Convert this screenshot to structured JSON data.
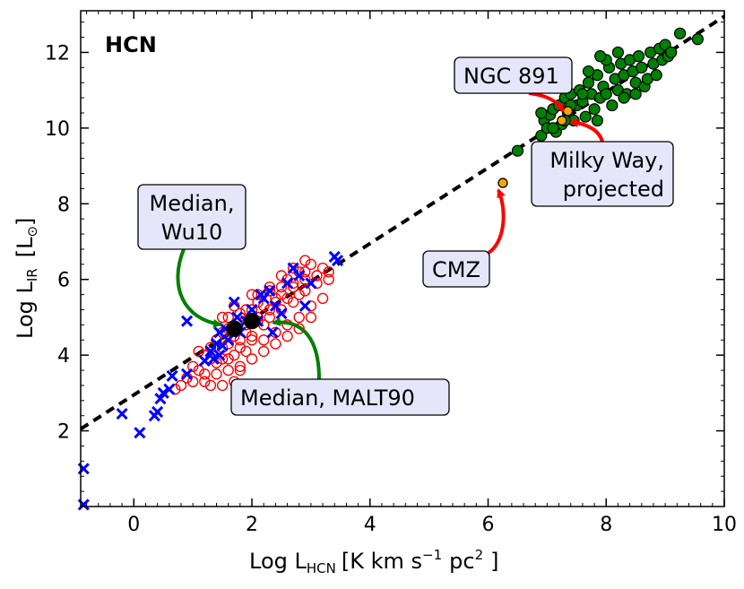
{
  "chart_data": {
    "type": "scatter",
    "panel_label": "HCN",
    "xlabel": {
      "main": "Log L",
      "sub": "HCN",
      "units": "[K km s",
      "exp": "−1",
      "pc": "pc",
      "pc_exp": "2",
      "close": "]"
    },
    "ylabel": {
      "main": "Log L",
      "sub": "IR",
      "units": "[L",
      "sun": "⊙",
      "close": "]"
    },
    "xlim": [
      -0.9,
      10.0
    ],
    "ylim": [
      0.0,
      13.1
    ],
    "xticks": [
      "0",
      "2",
      "4",
      "6",
      "8",
      "10"
    ],
    "xtick_values": [
      0,
      2,
      4,
      6,
      8,
      10
    ],
    "yticks": [
      "2",
      "4",
      "6",
      "8",
      "10",
      "12"
    ],
    "ytick_values": [
      2,
      4,
      6,
      8,
      10,
      12
    ],
    "grid": false,
    "fit_line": {
      "style": "dashed",
      "color": "#000000",
      "x": [
        -0.9,
        10.0
      ],
      "y": [
        2.05,
        12.95
      ]
    },
    "series": [
      {
        "marker": "open-circle",
        "color": "#ff0000",
        "points": [
          [
            1.3,
            3.2
          ],
          [
            1.5,
            3.2
          ],
          [
            1.7,
            3.3
          ],
          [
            1.4,
            3.5
          ],
          [
            1.6,
            3.6
          ],
          [
            1.8,
            3.7
          ],
          [
            1.5,
            3.9
          ],
          [
            1.7,
            4.0
          ],
          [
            1.9,
            4.1
          ],
          [
            1.3,
            4.2
          ],
          [
            1.6,
            4.3
          ],
          [
            1.8,
            4.4
          ],
          [
            2.0,
            4.5
          ],
          [
            1.5,
            4.6
          ],
          [
            1.7,
            4.7
          ],
          [
            1.9,
            4.8
          ],
          [
            2.1,
            4.9
          ],
          [
            2.3,
            5.0
          ],
          [
            1.6,
            5.0
          ],
          [
            1.8,
            5.1
          ],
          [
            2.0,
            5.2
          ],
          [
            2.2,
            5.3
          ],
          [
            2.4,
            5.4
          ],
          [
            2.6,
            5.5
          ],
          [
            2.8,
            5.6
          ],
          [
            2.1,
            5.6
          ],
          [
            2.3,
            5.7
          ],
          [
            2.5,
            5.8
          ],
          [
            2.7,
            5.9
          ],
          [
            2.9,
            6.0
          ],
          [
            3.1,
            6.1
          ],
          [
            3.2,
            6.3
          ],
          [
            3.0,
            6.4
          ],
          [
            2.8,
            6.2
          ],
          [
            2.6,
            6.0
          ],
          [
            2.4,
            5.5
          ],
          [
            2.2,
            4.8
          ],
          [
            2.0,
            4.4
          ],
          [
            1.8,
            4.2
          ],
          [
            1.6,
            3.9
          ],
          [
            1.4,
            3.8
          ],
          [
            1.2,
            4.0
          ],
          [
            1.1,
            3.6
          ],
          [
            0.9,
            3.4
          ],
          [
            0.8,
            3.2
          ],
          [
            0.7,
            3.1
          ],
          [
            1.0,
            3.3
          ],
          [
            1.2,
            3.5
          ],
          [
            2.5,
            5.2
          ],
          [
            2.7,
            5.4
          ],
          [
            2.9,
            5.7
          ],
          [
            3.1,
            5.9
          ],
          [
            3.3,
            6.0
          ],
          [
            2.6,
            4.8
          ],
          [
            2.4,
            4.6
          ],
          [
            2.2,
            4.4
          ],
          [
            2.8,
            5.0
          ],
          [
            3.0,
            5.3
          ],
          [
            1.9,
            4.6
          ],
          [
            2.1,
            5.0
          ],
          [
            2.3,
            5.2
          ],
          [
            2.5,
            5.6
          ],
          [
            2.7,
            5.8
          ],
          [
            2.9,
            6.2
          ],
          [
            1.7,
            4.5
          ],
          [
            1.5,
            4.2
          ],
          [
            1.3,
            3.9
          ],
          [
            2.0,
            3.9
          ],
          [
            1.8,
            3.6
          ],
          [
            2.2,
            4.1
          ],
          [
            2.4,
            4.3
          ],
          [
            2.6,
            4.5
          ],
          [
            2.8,
            4.7
          ],
          [
            3.0,
            5.0
          ],
          [
            3.2,
            5.5
          ],
          [
            1.1,
            4.1
          ],
          [
            1.4,
            4.4
          ],
          [
            1.6,
            4.7
          ],
          [
            1.9,
            5.2
          ],
          [
            2.1,
            5.4
          ],
          [
            2.3,
            5.8
          ],
          [
            2.0,
            5.6
          ],
          [
            1.7,
            5.3
          ],
          [
            1.5,
            5.0
          ],
          [
            2.7,
            6.3
          ],
          [
            2.9,
            6.5
          ],
          [
            3.3,
            6.2
          ],
          [
            2.5,
            6.1
          ],
          [
            1.2,
            3.3
          ],
          [
            1.0,
            3.7
          ]
        ]
      },
      {
        "marker": "x",
        "color": "#0000ff",
        "points": [
          [
            -0.85,
            1.0
          ],
          [
            -0.85,
            0.05
          ],
          [
            -0.2,
            2.45
          ],
          [
            0.1,
            1.95
          ],
          [
            0.35,
            2.4
          ],
          [
            0.4,
            2.5
          ],
          [
            0.45,
            2.85
          ],
          [
            0.5,
            3.0
          ],
          [
            0.6,
            3.1
          ],
          [
            0.65,
            3.45
          ],
          [
            0.9,
            3.5
          ],
          [
            0.9,
            4.9
          ],
          [
            1.2,
            3.85
          ],
          [
            1.3,
            4.1
          ],
          [
            1.35,
            3.9
          ],
          [
            1.4,
            4.3
          ],
          [
            1.45,
            4.6
          ],
          [
            1.5,
            4.25
          ],
          [
            1.55,
            4.7
          ],
          [
            1.6,
            4.4
          ],
          [
            1.7,
            5.4
          ],
          [
            1.8,
            4.6
          ],
          [
            1.9,
            4.9
          ],
          [
            2.0,
            5.2
          ],
          [
            2.1,
            4.9
          ],
          [
            2.2,
            5.5
          ],
          [
            2.3,
            5.7
          ],
          [
            2.35,
            4.6
          ],
          [
            2.4,
            5.3
          ],
          [
            2.5,
            5.1
          ],
          [
            2.6,
            5.9
          ],
          [
            2.7,
            6.3
          ],
          [
            2.8,
            6.1
          ],
          [
            2.9,
            5.3
          ],
          [
            3.0,
            5.9
          ],
          [
            3.4,
            6.6
          ],
          [
            3.45,
            6.5
          ],
          [
            1.45,
            4.0
          ],
          [
            1.75,
            5.0
          ],
          [
            2.15,
            5.6
          ]
        ]
      },
      {
        "marker": "filled-circle",
        "color": "#008000",
        "points": [
          [
            6.5,
            9.4
          ],
          [
            6.9,
            9.8
          ],
          [
            6.95,
            10.2
          ],
          [
            7.0,
            10.0
          ],
          [
            7.05,
            10.35
          ],
          [
            7.1,
            10.5
          ],
          [
            7.15,
            9.9
          ],
          [
            7.2,
            10.6
          ],
          [
            7.25,
            10.1
          ],
          [
            7.3,
            10.8
          ],
          [
            7.35,
            10.4
          ],
          [
            7.4,
            10.9
          ],
          [
            7.45,
            10.2
          ],
          [
            7.5,
            10.6
          ],
          [
            7.55,
            11.0
          ],
          [
            7.6,
            10.7
          ],
          [
            7.65,
            10.3
          ],
          [
            7.7,
            11.2
          ],
          [
            7.75,
            10.9
          ],
          [
            7.8,
            10.5
          ],
          [
            7.85,
            11.4
          ],
          [
            7.9,
            10.8
          ],
          [
            7.95,
            11.1
          ],
          [
            8.0,
            10.9
          ],
          [
            8.05,
            11.6
          ],
          [
            8.1,
            10.6
          ],
          [
            8.15,
            11.3
          ],
          [
            8.2,
            11.0
          ],
          [
            8.25,
            11.7
          ],
          [
            8.3,
            11.4
          ],
          [
            8.35,
            10.9
          ],
          [
            8.4,
            11.8
          ],
          [
            8.45,
            11.5
          ],
          [
            8.5,
            11.2
          ],
          [
            8.55,
            11.9
          ],
          [
            8.6,
            11.6
          ],
          [
            8.65,
            11.1
          ],
          [
            8.7,
            11.3
          ],
          [
            8.75,
            12.0
          ],
          [
            8.8,
            11.7
          ],
          [
            8.85,
            11.4
          ],
          [
            8.9,
            12.1
          ],
          [
            8.95,
            11.8
          ],
          [
            9.0,
            12.2
          ],
          [
            9.05,
            11.9
          ],
          [
            9.1,
            12.0
          ],
          [
            9.25,
            12.5
          ],
          [
            9.55,
            12.35
          ],
          [
            8.0,
            11.8
          ],
          [
            8.2,
            12.0
          ],
          [
            7.7,
            11.5
          ],
          [
            7.9,
            11.9
          ],
          [
            7.3,
            10.2
          ],
          [
            7.6,
            10.9
          ],
          [
            8.3,
            10.8
          ],
          [
            8.5,
            10.9
          ],
          [
            7.85,
            10.2
          ],
          [
            7.4,
            10.6
          ],
          [
            6.9,
            10.4
          ],
          [
            7.1,
            10.0
          ]
        ]
      }
    ],
    "highlight_points": [
      {
        "name": "CMZ",
        "x": 6.25,
        "y": 8.55,
        "color": "#ffa500"
      },
      {
        "name": "Milky Way, projected",
        "x": 7.25,
        "y": 10.2,
        "color": "#ffa500"
      },
      {
        "name": "NGC 891",
        "x": 7.35,
        "y": 10.45,
        "color": "#ffa500"
      },
      {
        "name": "Median, Wu10",
        "x": 1.7,
        "y": 4.7,
        "color": "#000000"
      },
      {
        "name": "Median, MALT90",
        "x": 2.0,
        "y": 4.9,
        "color": "#000000"
      }
    ],
    "annotations": [
      {
        "id": "ngc891",
        "lines": [
          "NGC 891"
        ],
        "text_anchor": "start",
        "arrow_color": "#ff0000"
      },
      {
        "id": "milkyway",
        "lines": [
          "Milky Way,",
          "projected"
        ],
        "text_anchor": "end",
        "arrow_color": "#ff0000"
      },
      {
        "id": "cmz",
        "lines": [
          "CMZ"
        ],
        "text_anchor": "start",
        "arrow_color": "#ff0000"
      },
      {
        "id": "wu10",
        "lines": [
          "Median,",
          "Wu10"
        ],
        "text_anchor": "middle",
        "arrow_color": "#008000"
      },
      {
        "id": "malt90",
        "lines": [
          "Median, MALT90"
        ],
        "text_anchor": "start",
        "arrow_color": "#008000"
      }
    ]
  }
}
